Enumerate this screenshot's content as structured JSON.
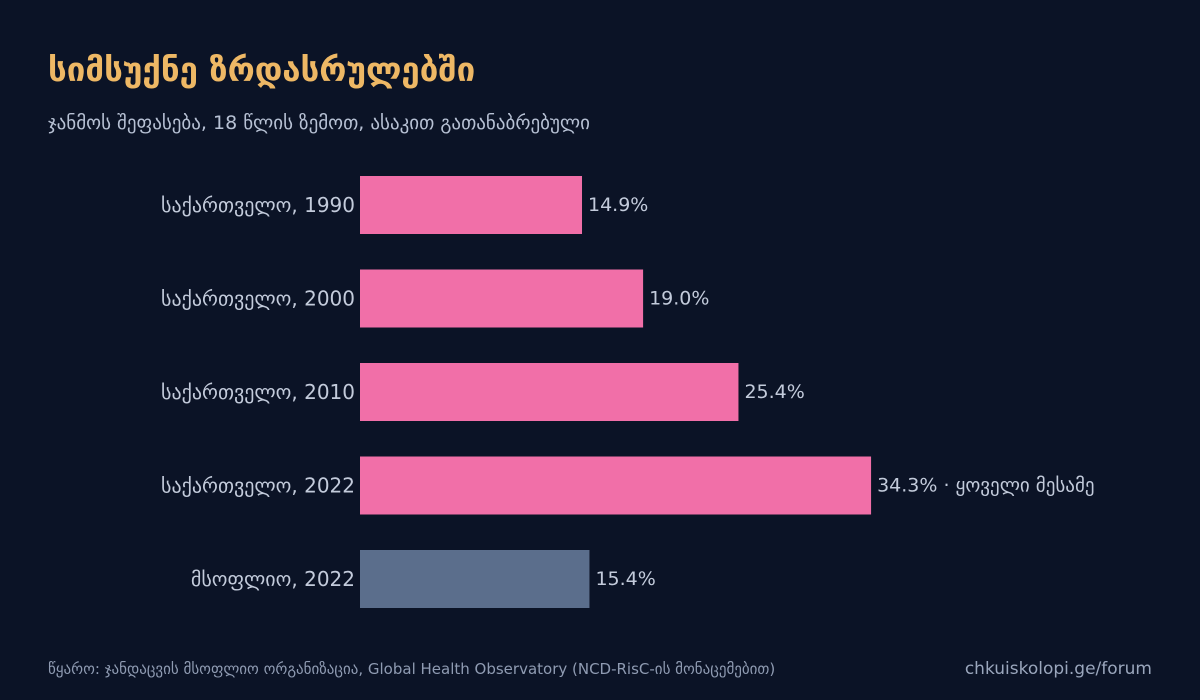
{
  "title": "სიმსუქნე ზრდასრულებში",
  "subtitle": "ჯანმოს შეფასება, 18 წლის ზემოთ, ასაკით გათანაბრებული",
  "source": "წყარო: ჯანდაცვის მსოფლიო ორგანიზაცია, Global Health Observatory (NCD-RisC-ის მონაცემებით)",
  "site": "chkuiskolopi.ge/forum",
  "colors": {
    "background": "#0b1326",
    "title": "#eeb865",
    "highlight_bar": "#f16fa8",
    "comparison_bar": "#5b6e8c",
    "label": "#c3cbdb"
  },
  "chart_data": {
    "type": "bar",
    "orientation": "horizontal",
    "categories": [
      "საქართველო, 1990",
      "საქართველო, 2000",
      "საქართველო, 2010",
      "საქართველო, 2022",
      "მსოფლიო, 2022"
    ],
    "values": [
      14.9,
      19.0,
      25.4,
      34.3,
      15.4
    ],
    "value_labels": [
      "14.9%",
      "19.0%",
      "25.4%",
      "34.3% · ყოველი მესამე",
      "15.4%"
    ],
    "bar_colors": [
      "#f16fa8",
      "#f16fa8",
      "#f16fa8",
      "#f16fa8",
      "#5b6e8c"
    ],
    "xlim": [
      0,
      50
    ],
    "grid": false,
    "legend": "none"
  }
}
